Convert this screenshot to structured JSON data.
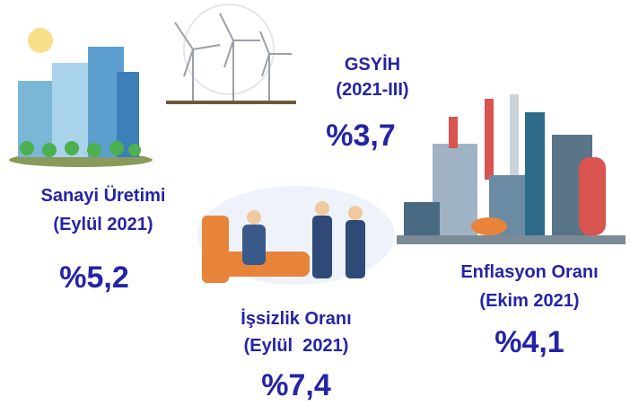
{
  "indicators": [
    {
      "title": "GSYİH",
      "period": "(2021-III)",
      "value": "%3,7"
    },
    {
      "title": "Sanayi Üretimi",
      "period": "(Eylül 2021)",
      "value": "%5,2"
    },
    {
      "title": "İşsizlik Oranı",
      "period": "(Eylül  2021)",
      "value": "%7,4"
    },
    {
      "title": "Enflasyon Oranı",
      "period": "(Ekim 2021)",
      "value": "%4,1"
    }
  ]
}
